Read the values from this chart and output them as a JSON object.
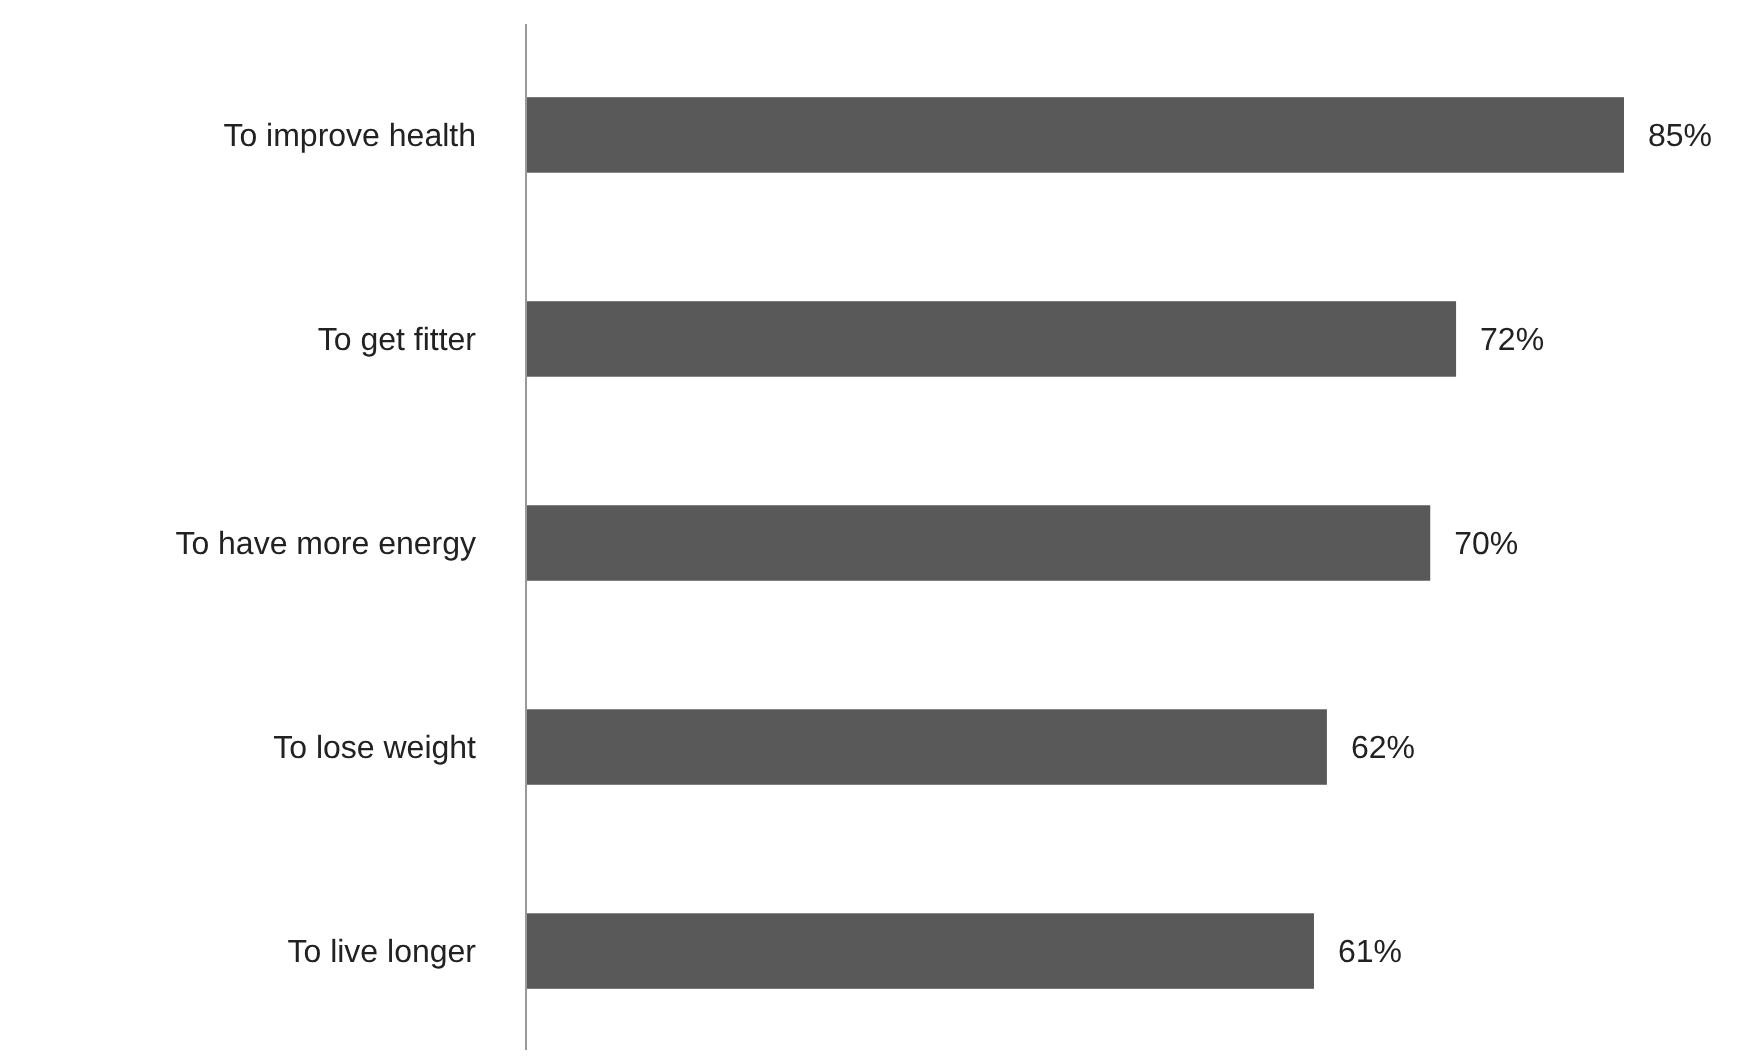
{
  "chart_data": {
    "type": "bar",
    "orientation": "horizontal",
    "categories": [
      "To improve health",
      "To get fitter",
      "To have more energy",
      "To lose weight",
      "To live longer"
    ],
    "values": [
      85,
      72,
      70,
      62,
      61
    ],
    "value_labels": [
      "85%",
      "72%",
      "70%",
      "62%",
      "61%"
    ],
    "color": "#595959"
  }
}
